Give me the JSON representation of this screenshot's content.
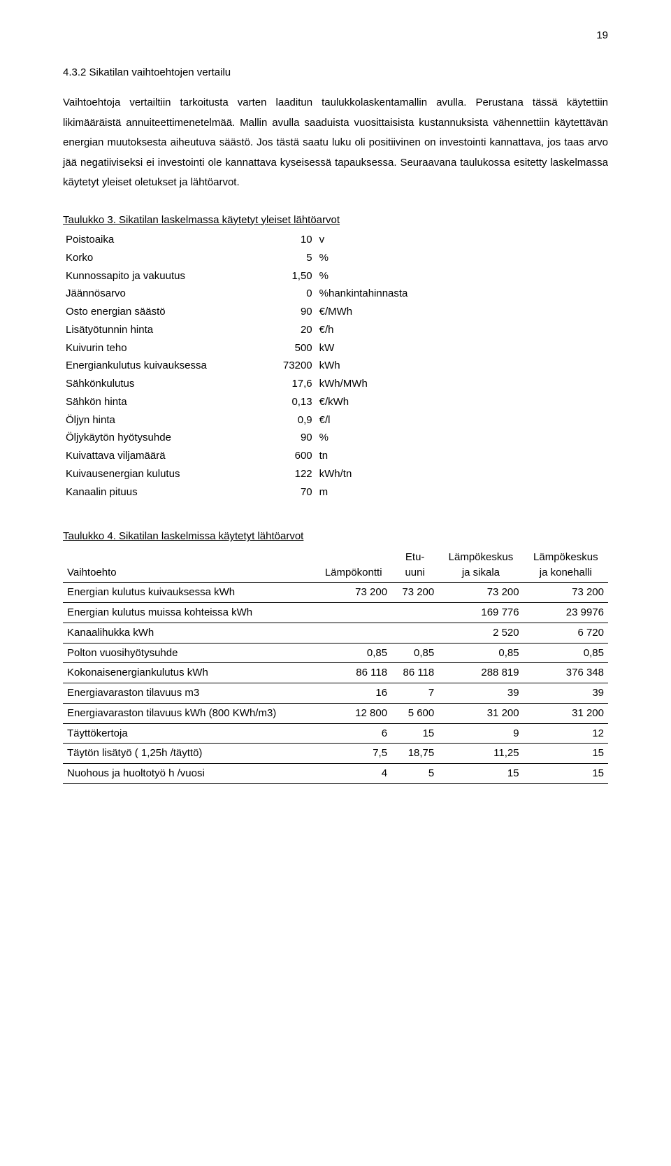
{
  "page_number": "19",
  "heading": "4.3.2 Sikatilan vaihtoehtojen vertailu",
  "paragraph": "Vaihtoehtoja vertailtiin tarkoitusta varten laaditun taulukkolaskentamallin avulla. Perustana tässä käytettiin likimääräistä annuiteettimenetelmää. Mallin avulla saaduista vuosittaisista kustannuksista vähennettiin käytettävän energian muutoksesta aiheutuva säästö. Jos tästä saatu luku oli positiivinen on investointi kannattava, jos taas arvo jää negatiiviseksi ei investointi ole kannattava kyseisessä tapauksessa. Seuraavana taulukossa esitetty laskelmassa käytetyt yleiset oletukset ja lähtöarvot.",
  "table3": {
    "title": "Taulukko 3. Sikatilan laskelmassa käytetyt yleiset lähtöarvot",
    "rows": [
      {
        "label": "Poistoaika",
        "value": "10",
        "unit": "v"
      },
      {
        "label": "Korko",
        "value": "5",
        "unit": "%"
      },
      {
        "label": "Kunnossapito ja vakuutus",
        "value": "1,50",
        "unit": "%"
      },
      {
        "label": "Jäännösarvo",
        "value": "0",
        "unit": "%hankintahinnasta"
      },
      {
        "label": "Osto energian säästö",
        "value": "90",
        "unit": "€/MWh"
      },
      {
        "label": "Lisätyötunnin hinta",
        "value": "20",
        "unit": "€/h"
      },
      {
        "label": "Kuivurin teho",
        "value": "500",
        "unit": "kW"
      },
      {
        "label": "Energiankulutus kuivauksessa",
        "value": "73200",
        "unit": "kWh"
      },
      {
        "label": "Sähkönkulutus",
        "value": "17,6",
        "unit": "kWh/MWh"
      },
      {
        "label": "Sähkön hinta",
        "value": "0,13",
        "unit": "€/kWh"
      },
      {
        "label": "Öljyn hinta",
        "value": "0,9",
        "unit": "€/l"
      },
      {
        "label": "Öljykäytön hyötysuhde",
        "value": "90",
        "unit": "%"
      },
      {
        "label": "Kuivattava viljamäärä",
        "value": "600",
        "unit": "tn"
      },
      {
        "label": "Kuivausenergian kulutus",
        "value": "122",
        "unit": "kWh/tn"
      },
      {
        "label": "Kanaalin pituus",
        "value": "70",
        "unit": "m"
      }
    ]
  },
  "table4": {
    "title": "Taulukko 4. Sikatilan laskelmissa käytetyt lähtöarvot",
    "head": {
      "c1": "Vaihtoehto",
      "c2": "Lämpökontti",
      "c3a": "Etu-",
      "c3b": "uuni",
      "c4a": "Lämpökeskus",
      "c4b": "ja sikala",
      "c5a": "Lämpökeskus",
      "c5b": "ja konehalli"
    },
    "rows": [
      {
        "label": "Energian kulutus kuivauksessa kWh",
        "c2": "73 200",
        "c3": "73 200",
        "c4": "73 200",
        "c5": "73 200"
      },
      {
        "label": "Energian kulutus muissa kohteissa kWh",
        "c2": "",
        "c3": "",
        "c4": "169 776",
        "c5": "23 9976"
      },
      {
        "label": "Kanaalihukka kWh",
        "c2": "",
        "c3": "",
        "c4": "2 520",
        "c5": "6 720"
      },
      {
        "label": "Polton vuosihyötysuhde",
        "c2": "0,85",
        "c3": "0,85",
        "c4": "0,85",
        "c5": "0,85"
      },
      {
        "label": "Kokonaisenergiankulutus kWh",
        "c2": "86 118",
        "c3": "86 118",
        "c4": "288 819",
        "c5": "376 348"
      },
      {
        "label": "Energiavaraston tilavuus m3",
        "c2": "16",
        "c3": "7",
        "c4": "39",
        "c5": "39"
      },
      {
        "label": "Energiavaraston tilavuus kWh (800 KWh/m3)",
        "c2": "12 800",
        "c3": "5 600",
        "c4": "31 200",
        "c5": "31 200"
      },
      {
        "label": "Täyttökertoja",
        "c2": "6",
        "c3": "15",
        "c4": "9",
        "c5": "12"
      },
      {
        "label": "Täytön lisätyö ( 1,25h /täyttö)",
        "c2": "7,5",
        "c3": "18,75",
        "c4": "11,25",
        "c5": "15"
      },
      {
        "label": "Nuohous ja huoltotyö h /vuosi",
        "c2": "4",
        "c3": "5",
        "c4": "15",
        "c5": "15"
      }
    ]
  }
}
